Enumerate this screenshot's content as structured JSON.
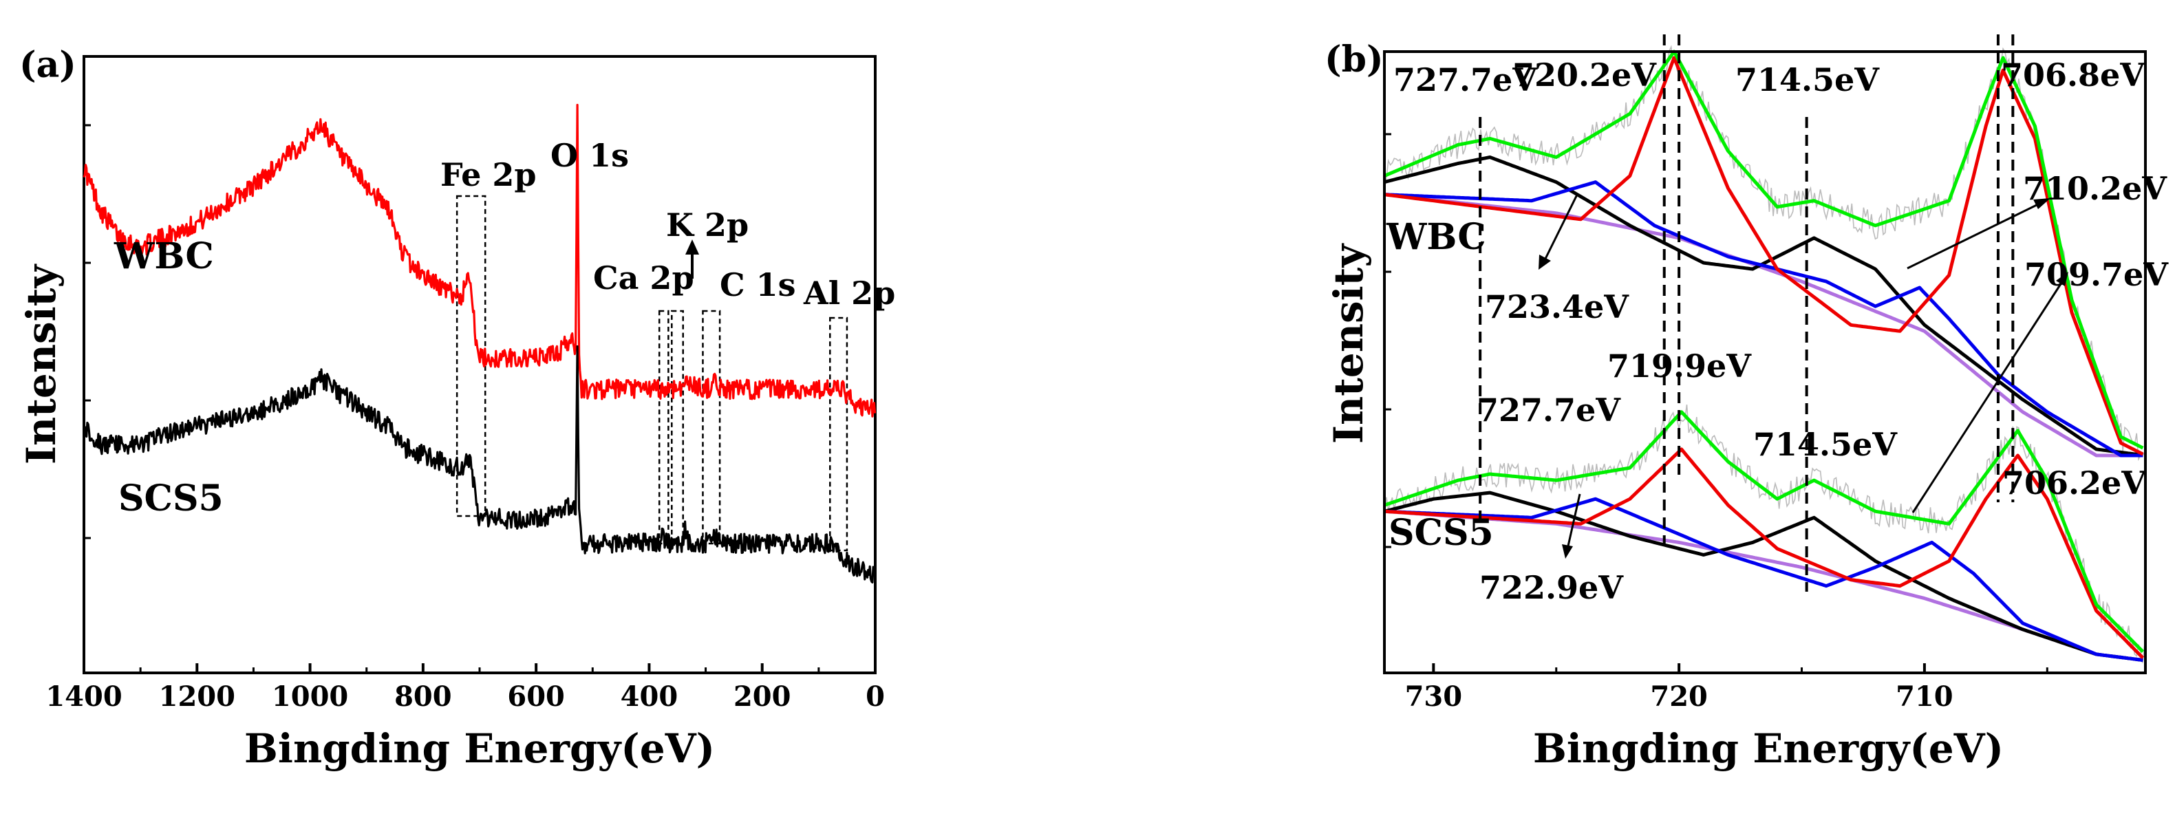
{
  "chart_data": [
    {
      "panel": "(a)",
      "type": "line",
      "title": "",
      "xlabel": "Bingding Energy(eV)",
      "ylabel": "Intensity",
      "xlim": [
        1400,
        0
      ],
      "xticks": [
        1400,
        1200,
        1000,
        800,
        600,
        400,
        200,
        0
      ],
      "x_reversed": true,
      "ylim": [
        0,
        100
      ],
      "yticks_shown": false,
      "series": [
        {
          "name": "WBC",
          "color": "#ff0000",
          "points": [
            [
              1400,
              82
            ],
            [
              1370,
              75
            ],
            [
              1340,
              71
            ],
            [
              1300,
              69
            ],
            [
              1250,
              71
            ],
            [
              1200,
              73
            ],
            [
              1150,
              76
            ],
            [
              1100,
              79
            ],
            [
              1050,
              83
            ],
            [
              1000,
              87
            ],
            [
              980,
              89
            ],
            [
              960,
              86
            ],
            [
              940,
              83
            ],
            [
              900,
              79
            ],
            [
              860,
              75
            ],
            [
              840,
              69
            ],
            [
              820,
              66
            ],
            [
              790,
              64
            ],
            [
              760,
              62
            ],
            [
              730,
              61
            ],
            [
              720,
              66
            ],
            [
              712,
              60
            ],
            [
              705,
              52
            ],
            [
              700,
              51
            ],
            [
              650,
              51
            ],
            [
              600,
              51
            ],
            [
              560,
              52
            ],
            [
              540,
              54
            ],
            [
              530,
              53
            ],
            [
              527,
              93
            ],
            [
              524,
              52
            ],
            [
              520,
              46
            ],
            [
              500,
              46
            ],
            [
              450,
              46
            ],
            [
              400,
              46
            ],
            [
              360,
              46
            ],
            [
              330,
              47
            ],
            [
              300,
              46
            ],
            [
              284,
              47
            ],
            [
              270,
              46
            ],
            [
              200,
              46
            ],
            [
              150,
              46
            ],
            [
              100,
              46
            ],
            [
              60,
              46
            ],
            [
              50,
              45
            ],
            [
              30,
              43
            ],
            [
              0,
              43
            ]
          ]
        },
        {
          "name": "SCS5",
          "color": "#000000",
          "points": [
            [
              1400,
              40
            ],
            [
              1370,
              37
            ],
            [
              1340,
              37
            ],
            [
              1300,
              37
            ],
            [
              1250,
              39
            ],
            [
              1200,
              40
            ],
            [
              1150,
              41
            ],
            [
              1100,
              42
            ],
            [
              1050,
              44
            ],
            [
              1000,
              46
            ],
            [
              980,
              48
            ],
            [
              960,
              46
            ],
            [
              940,
              45
            ],
            [
              900,
              42
            ],
            [
              860,
              40
            ],
            [
              840,
              37
            ],
            [
              820,
              36
            ],
            [
              790,
              35
            ],
            [
              760,
              34
            ],
            [
              730,
              33
            ],
            [
              720,
              35
            ],
            [
              712,
              32
            ],
            [
              705,
              26
            ],
            [
              700,
              25
            ],
            [
              650,
              25
            ],
            [
              600,
              25
            ],
            [
              560,
              26
            ],
            [
              540,
              27
            ],
            [
              530,
              26
            ],
            [
              527,
              54
            ],
            [
              524,
              26
            ],
            [
              520,
              21
            ],
            [
              500,
              21
            ],
            [
              450,
              21
            ],
            [
              400,
              21
            ],
            [
              380,
              21
            ],
            [
              378,
              23
            ],
            [
              370,
              21
            ],
            [
              350,
              21
            ],
            [
              340,
              21
            ],
            [
              337,
              24
            ],
            [
              330,
              21
            ],
            [
              300,
              21
            ],
            [
              284,
              22
            ],
            [
              270,
              21
            ],
            [
              200,
              21
            ],
            [
              150,
              21
            ],
            [
              100,
              21
            ],
            [
              70,
              21
            ],
            [
              60,
              19
            ],
            [
              50,
              18
            ],
            [
              30,
              17
            ],
            [
              0,
              16
            ]
          ]
        }
      ],
      "sample_labels": [
        "WBC",
        "SCS5"
      ],
      "peak_labels": [
        "Fe 2p",
        "O 1s",
        "Ca 2p",
        "K 2p",
        "C 1s",
        "Al 2p"
      ],
      "boxes": [
        {
          "label": "Fe 2p",
          "x_range": [
            740,
            690
          ]
        },
        {
          "label": "Ca 2p",
          "x_range": [
            382,
            366
          ]
        },
        {
          "label": "K 2p",
          "x_range": [
            360,
            340
          ]
        },
        {
          "label": "C 1s",
          "x_range": [
            305,
            275
          ]
        },
        {
          "label": "Al 2p",
          "x_range": [
            80,
            50
          ]
        }
      ]
    },
    {
      "panel": "(b)",
      "type": "line",
      "title": "",
      "xlabel": "Bingding Energy(eV)",
      "ylabel": "Intensity",
      "xlim": [
        732,
        701
      ],
      "xticks": [
        730,
        720,
        710
      ],
      "x_reversed": true,
      "ylim": [
        0,
        100
      ],
      "yticks_shown": false,
      "series_legend": {
        "raw": "#bbbbbb",
        "envelope": "#00ee00",
        "fit_red": "#ee0000",
        "fit_black": "#000000",
        "fit_blue": "#0000ee",
        "background": "#b070e0"
      },
      "wbc": {
        "label": "WBC",
        "baseline": [
          [
            732,
            77
          ],
          [
            725,
            74
          ],
          [
            720,
            70
          ],
          [
            715,
            63
          ],
          [
            710,
            55
          ],
          [
            706,
            42
          ],
          [
            703,
            35
          ],
          [
            701,
            35
          ]
        ],
        "red": [
          [
            732,
            77
          ],
          [
            724,
            73
          ],
          [
            722,
            80
          ],
          [
            720.2,
            99
          ],
          [
            718,
            78
          ],
          [
            716,
            65
          ],
          [
            713,
            56
          ],
          [
            711,
            55
          ],
          [
            709,
            64
          ],
          [
            707.5,
            88
          ],
          [
            706.8,
            97
          ],
          [
            705.5,
            86
          ],
          [
            704,
            58
          ],
          [
            702,
            37
          ],
          [
            701,
            35
          ]
        ],
        "black": [
          [
            732,
            79
          ],
          [
            729,
            82
          ],
          [
            727.7,
            83
          ],
          [
            725,
            79
          ],
          [
            722,
            72
          ],
          [
            719,
            66
          ],
          [
            717,
            65
          ],
          [
            714.5,
            70
          ],
          [
            712,
            65
          ],
          [
            710,
            56
          ],
          [
            706,
            44
          ],
          [
            703,
            36
          ],
          [
            701,
            35
          ]
        ],
        "blue": [
          [
            732,
            77
          ],
          [
            726,
            76
          ],
          [
            723.4,
            79
          ],
          [
            721,
            72
          ],
          [
            718,
            67
          ],
          [
            714,
            63
          ],
          [
            712,
            59
          ],
          [
            710.2,
            62
          ],
          [
            709,
            57
          ],
          [
            707,
            48
          ],
          [
            705,
            42
          ],
          [
            702,
            35
          ],
          [
            701,
            35
          ]
        ],
        "green": [
          [
            732,
            80
          ],
          [
            729,
            85
          ],
          [
            727.7,
            86
          ],
          [
            725,
            83
          ],
          [
            722,
            90
          ],
          [
            720.2,
            100
          ],
          [
            718,
            84
          ],
          [
            716,
            75
          ],
          [
            714.5,
            76
          ],
          [
            712,
            72
          ],
          [
            709,
            76
          ],
          [
            707.5,
            92
          ],
          [
            706.8,
            99
          ],
          [
            705.5,
            88
          ],
          [
            704,
            60
          ],
          [
            702,
            38
          ],
          [
            701,
            36
          ]
        ]
      },
      "scs5": {
        "label": "SCS5",
        "baseline": [
          [
            732,
            26
          ],
          [
            725,
            24
          ],
          [
            720,
            21
          ],
          [
            715,
            17
          ],
          [
            710,
            12
          ],
          [
            706,
            7
          ],
          [
            703,
            3
          ],
          [
            701,
            2
          ]
        ],
        "red": [
          [
            732,
            26
          ],
          [
            724,
            24
          ],
          [
            722,
            28
          ],
          [
            719.9,
            36
          ],
          [
            718,
            27
          ],
          [
            716,
            20
          ],
          [
            713,
            15
          ],
          [
            711,
            14
          ],
          [
            709,
            18
          ],
          [
            707.5,
            28
          ],
          [
            706.2,
            35
          ],
          [
            705,
            28
          ],
          [
            703,
            10
          ],
          [
            701,
            2
          ]
        ],
        "black": [
          [
            732,
            26
          ],
          [
            730,
            28
          ],
          [
            727.7,
            29
          ],
          [
            725,
            26
          ],
          [
            722,
            22
          ],
          [
            719,
            19
          ],
          [
            717,
            21
          ],
          [
            714.5,
            25
          ],
          [
            712,
            18
          ],
          [
            709,
            12
          ],
          [
            706,
            7
          ],
          [
            703,
            3
          ],
          [
            701,
            2
          ]
        ],
        "blue": [
          [
            732,
            26
          ],
          [
            726,
            25
          ],
          [
            723.4,
            28
          ],
          [
            721,
            24
          ],
          [
            718,
            19
          ],
          [
            714,
            14
          ],
          [
            712,
            17
          ],
          [
            709.7,
            21
          ],
          [
            708,
            16
          ],
          [
            706,
            8
          ],
          [
            703,
            3
          ],
          [
            701,
            2
          ]
        ],
        "green": [
          [
            732,
            27
          ],
          [
            729,
            31
          ],
          [
            727.7,
            32
          ],
          [
            725,
            31
          ],
          [
            722,
            33
          ],
          [
            719.9,
            42
          ],
          [
            718,
            34
          ],
          [
            716,
            28
          ],
          [
            714.5,
            31
          ],
          [
            712,
            26
          ],
          [
            709,
            24
          ],
          [
            707.5,
            32
          ],
          [
            706.2,
            39
          ],
          [
            705,
            31
          ],
          [
            703,
            11
          ],
          [
            701,
            3
          ]
        ]
      },
      "vlines_ev": [
        728.1,
        720.6,
        720.0,
        714.8,
        707.0,
        706.4
      ],
      "peak_labels": [
        "727.7eV",
        "720.2eV",
        "714.5eV",
        "706.8eV",
        "710.2eV",
        "723.4eV",
        "709.7eV",
        "727.7eV",
        "719.9eV",
        "714.5eV",
        "706.2eV",
        "722.9eV"
      ],
      "sample_labels": [
        "WBC",
        "SCS5"
      ]
    }
  ]
}
